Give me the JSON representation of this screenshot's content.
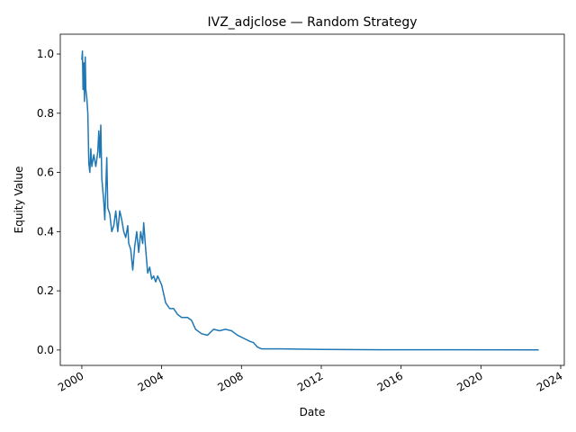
{
  "chart_data": {
    "type": "line",
    "title": "IVZ_adjclose — Random Strategy",
    "x_label": "Date",
    "y_label": "Equity Value",
    "x": [
      2000.0,
      2000.03,
      2000.06,
      2000.1,
      2000.13,
      2000.17,
      2000.2,
      2000.25,
      2000.3,
      2000.35,
      2000.4,
      2000.45,
      2000.5,
      2000.6,
      2000.7,
      2000.8,
      2000.85,
      2000.9,
      2000.95,
      2001.0,
      2001.1,
      2001.15,
      2001.25,
      2001.3,
      2001.4,
      2001.5,
      2001.6,
      2001.7,
      2001.8,
      2001.9,
      2002.0,
      2002.1,
      2002.2,
      2002.3,
      2002.35,
      2002.45,
      2002.55,
      2002.65,
      2002.75,
      2002.85,
      2002.95,
      2003.05,
      2003.1,
      2003.2,
      2003.3,
      2003.4,
      2003.5,
      2003.6,
      2003.7,
      2003.8,
      2004.0,
      2004.2,
      2004.4,
      2004.6,
      2004.8,
      2005.0,
      2005.3,
      2005.5,
      2005.7,
      2006.0,
      2006.3,
      2006.6,
      2006.9,
      2007.2,
      2007.5,
      2007.8,
      2008.1,
      2008.4,
      2008.6,
      2008.8,
      2009.0,
      2010.0,
      2012.0,
      2015.0,
      2018.0,
      2022.9
    ],
    "series": [
      {
        "name": "Equity",
        "color": "#1f77b4",
        "values": [
          0.98,
          1.01,
          0.88,
          0.97,
          0.84,
          0.99,
          0.88,
          0.85,
          0.8,
          0.63,
          0.6,
          0.68,
          0.62,
          0.66,
          0.62,
          0.67,
          0.74,
          0.65,
          0.76,
          0.58,
          0.5,
          0.44,
          0.65,
          0.48,
          0.46,
          0.4,
          0.42,
          0.47,
          0.4,
          0.47,
          0.44,
          0.4,
          0.38,
          0.42,
          0.36,
          0.34,
          0.27,
          0.35,
          0.4,
          0.33,
          0.4,
          0.36,
          0.43,
          0.34,
          0.26,
          0.28,
          0.24,
          0.25,
          0.23,
          0.25,
          0.22,
          0.16,
          0.14,
          0.14,
          0.12,
          0.11,
          0.11,
          0.1,
          0.07,
          0.055,
          0.05,
          0.07,
          0.065,
          0.07,
          0.065,
          0.05,
          0.04,
          0.03,
          0.025,
          0.01,
          0.004,
          0.004,
          0.002,
          0.001,
          0.0008,
          0.0005
        ]
      }
    ],
    "xlim": [
      1998.92,
      2024.18
    ],
    "xticks": [
      2000,
      2004,
      2008,
      2012,
      2016,
      2020,
      2024
    ],
    "ylim": [
      -0.052,
      1.067
    ],
    "yticks": [
      {
        "value": 0,
        "label": "0.0"
      },
      {
        "value": 0.2,
        "label": "0.2"
      },
      {
        "value": 0.4,
        "label": "0.4"
      },
      {
        "value": 0.6,
        "label": "0.6"
      },
      {
        "value": 0.8,
        "label": "0.8"
      },
      {
        "value": 1.0,
        "label": "1.0"
      }
    ]
  }
}
